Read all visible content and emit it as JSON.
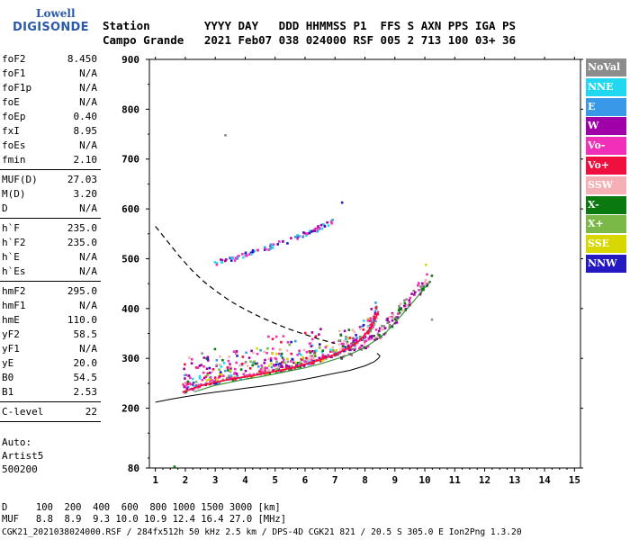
{
  "logo": {
    "line1": "Lowell",
    "line2": "DIGISONDE"
  },
  "header": {
    "line1": "Station        YYYY DAY   DDD HHMMSS P1  FFS S AXN PPS IGA PS",
    "line2": "Campo Grande   2021 Feb07 038 024000 RSF 005 2 713 100 03+ 36"
  },
  "params_group1": [
    {
      "label": "foF2",
      "value": "8.450"
    },
    {
      "label": "foF1",
      "value": "N/A"
    },
    {
      "label": "foF1p",
      "value": "N/A"
    },
    {
      "label": "foE",
      "value": "N/A"
    },
    {
      "label": "foEp",
      "value": "0.40"
    },
    {
      "label": "fxI",
      "value": "8.95"
    },
    {
      "label": "foEs",
      "value": "N/A"
    },
    {
      "label": "fmin",
      "value": "2.10"
    }
  ],
  "params_group2": [
    {
      "label": "MUF(D)",
      "value": "27.03"
    },
    {
      "label": "M(D)",
      "value": "3.20"
    },
    {
      "label": "D",
      "value": "N/A"
    }
  ],
  "params_group3": [
    {
      "label": "h`F",
      "value": "235.0"
    },
    {
      "label": "h`F2",
      "value": "235.0"
    },
    {
      "label": "h`E",
      "value": "N/A"
    },
    {
      "label": "h`Es",
      "value": "N/A"
    }
  ],
  "params_group4": [
    {
      "label": "hmF2",
      "value": "295.0"
    },
    {
      "label": "hmF1",
      "value": "N/A"
    },
    {
      "label": "hmE",
      "value": "110.0"
    },
    {
      "label": "yF2",
      "value": "58.5"
    },
    {
      "label": "yF1",
      "value": "N/A"
    },
    {
      "label": "yE",
      "value": "20.0"
    },
    {
      "label": "B0",
      "value": "54.5"
    },
    {
      "label": "B1",
      "value": "2.53"
    }
  ],
  "params_group5": [
    {
      "label": "C-level",
      "value": "22"
    }
  ],
  "auto": {
    "line1": "Auto:",
    "line2": "Artist5",
    "line3": "500200"
  },
  "legend": [
    {
      "label": "NoVal",
      "color": "#8c8c8c"
    },
    {
      "label": "NNE",
      "color": "#22d8f0"
    },
    {
      "label": "E",
      "color": "#3a98e8"
    },
    {
      "label": "W",
      "color": "#a000a8"
    },
    {
      "label": "Vo-",
      "color": "#f030b8"
    },
    {
      "label": "Vo+",
      "color": "#f01040"
    },
    {
      "label": "SSW",
      "color": "#f4b0b4"
    },
    {
      "label": "X-",
      "color": "#0a7a10"
    },
    {
      "label": "X+",
      "color": "#7ab848"
    },
    {
      "label": "SSE",
      "color": "#d8d800"
    },
    {
      "label": "NNW",
      "color": "#2418c0"
    }
  ],
  "bottom": {
    "row_d": "D     100  200  400  600  800 1000 1500 3000 [km]",
    "row_muf": "MUF   8.8  8.9  9.3 10.0 10.9 12.4 16.4 27.0 [MHz]",
    "footer": "CGK21_2021038024000.RSF / 284fx512h 50 kHz 2.5 km / DPS-4D CGK21 821 / 20.5 S 305.0 E Ion2Png 1.3.20"
  },
  "chart_data": {
    "type": "scatter",
    "title": "",
    "xlabel": "",
    "ylabel": "",
    "xlim": [
      0.8,
      15.2
    ],
    "ylim": [
      80,
      900
    ],
    "x_ticks": [
      1,
      2,
      3,
      4,
      5,
      6,
      7,
      8,
      9,
      10,
      11,
      12,
      13,
      14,
      15
    ],
    "y_ticks": [
      80,
      200,
      300,
      400,
      500,
      600,
      700,
      800,
      900
    ],
    "grid": false,
    "series": [
      {
        "name": "NoVal",
        "color": "#8c8c8c"
      },
      {
        "name": "NNE",
        "color": "#22d8f0"
      },
      {
        "name": "E",
        "color": "#3a98e8"
      },
      {
        "name": "W",
        "color": "#a000a8"
      },
      {
        "name": "Vo-",
        "color": "#f030b8"
      },
      {
        "name": "Vo+",
        "color": "#f01040"
      },
      {
        "name": "SSW",
        "color": "#f4b0b4"
      },
      {
        "name": "X-",
        "color": "#0a7a10"
      },
      {
        "name": "X+",
        "color": "#7ab848"
      },
      {
        "name": "SSE",
        "color": "#d8d800"
      },
      {
        "name": "NNW",
        "color": "#2418c0"
      }
    ],
    "o_trace": {
      "f": [
        1.9,
        2.5,
        3.0,
        3.5,
        4.0,
        4.5,
        5.0,
        5.5,
        6.0,
        6.5,
        7.0,
        7.5,
        7.8,
        8.0,
        8.2,
        8.35,
        8.45
      ],
      "h": [
        232,
        245,
        252,
        258,
        263,
        268,
        274,
        280,
        288,
        297,
        308,
        322,
        335,
        347,
        362,
        380,
        395
      ]
    },
    "x_trace": {
      "f": [
        2.3,
        3.0,
        3.5,
        4.0,
        4.5,
        5.0,
        5.5,
        6.0,
        6.5,
        7.0,
        7.5,
        8.0,
        8.4,
        8.7,
        8.95,
        9.3,
        9.7,
        10.0,
        10.2
      ],
      "h": [
        233,
        246,
        252,
        258,
        263,
        269,
        275,
        281,
        289,
        298,
        308,
        322,
        338,
        352,
        368,
        392,
        420,
        442,
        455
      ]
    },
    "upper_trace": {
      "f": [
        2.8,
        3.2,
        3.6,
        4.0,
        4.5,
        5.0,
        5.5,
        6.0,
        6.5,
        7.0
      ],
      "h": [
        488,
        492,
        498,
        505,
        515,
        525,
        535,
        548,
        560,
        575
      ]
    },
    "density_profile": {
      "f": [
        1.0,
        1.5,
        2.0,
        2.5,
        3.0,
        3.5,
        4.0,
        4.5,
        5.0,
        5.5,
        6.0,
        6.5,
        7.0,
        7.5,
        8.0,
        8.3,
        8.45,
        8.5,
        8.45,
        8.4
      ],
      "h": [
        212,
        218,
        223,
        228,
        232,
        236,
        240,
        244,
        248,
        253,
        258,
        264,
        270,
        276,
        285,
        293,
        300,
        305,
        308,
        310
      ]
    },
    "muf_curve": {
      "f": [
        1.0,
        1.4,
        1.8,
        2.2,
        2.6,
        3.0,
        3.5,
        4.0,
        4.5,
        5.0,
        5.5,
        6.0,
        6.5,
        7.0
      ],
      "h": [
        565,
        535,
        505,
        478,
        455,
        436,
        415,
        398,
        383,
        370,
        358,
        348,
        338,
        330
      ]
    },
    "isolated_points": [
      {
        "f": 1.6,
        "h": 85,
        "series": "X-"
      },
      {
        "f": 3.3,
        "h": 750,
        "series": "NoVal"
      },
      {
        "f": 7.2,
        "h": 615,
        "series": "NNW"
      },
      {
        "f": 6.7,
        "h": 575,
        "series": "W"
      },
      {
        "f": 10.0,
        "h": 490,
        "series": "SSE"
      },
      {
        "f": 10.2,
        "h": 380,
        "series": "NoVal"
      }
    ]
  }
}
